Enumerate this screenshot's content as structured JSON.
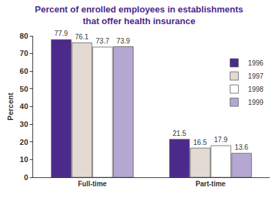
{
  "chart_data": {
    "type": "bar",
    "title": "Percent of enrolled employees in establishments that offer health insurance",
    "y_label": "Percent",
    "categories": [
      "Full-time",
      "Part-time"
    ],
    "series": [
      {
        "name": "1996",
        "color": "#4b2a8c",
        "values": [
          77.9,
          21.5
        ]
      },
      {
        "name": "1997",
        "color": "#e3dbd3",
        "values": [
          76.1,
          16.5
        ]
      },
      {
        "name": "1998",
        "color": "#ffffff",
        "values": [
          73.7,
          17.9
        ]
      },
      {
        "name": "1999",
        "color": "#b4a7d2",
        "values": [
          73.9,
          13.6
        ]
      }
    ],
    "ylim": [
      0,
      80
    ],
    "yticks": [
      0,
      10,
      20,
      30,
      40,
      50,
      60,
      70,
      80
    ],
    "grid": false,
    "legend": "upper right",
    "data_labels": true
  }
}
